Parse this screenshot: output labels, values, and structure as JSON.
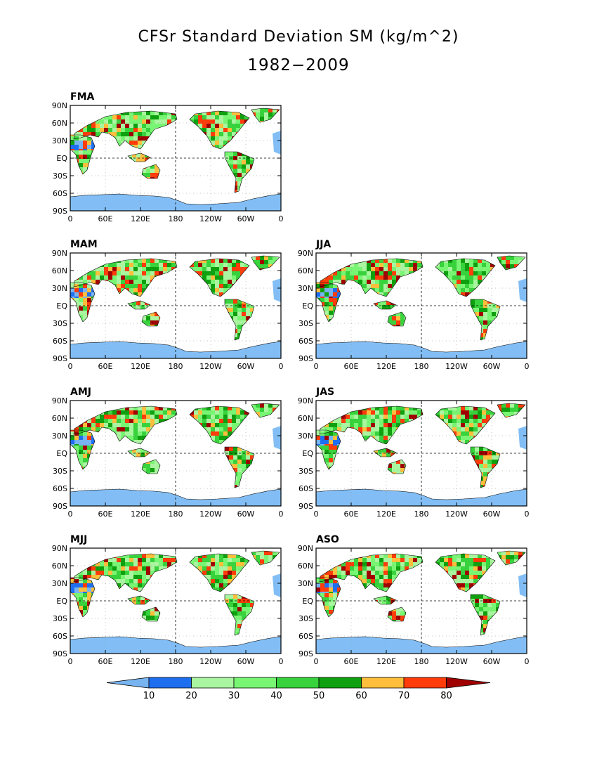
{
  "title": "CFSr Standard Deviation SM (kg/m^2)",
  "subtitle": "1982−2009",
  "lat_ticks": [
    "90N",
    "60N",
    "30N",
    "EQ",
    "30S",
    "60S",
    "90S"
  ],
  "lon_ticks": [
    "0",
    "60E",
    "120E",
    "180",
    "120W",
    "60W",
    "0"
  ],
  "panels": [
    {
      "id": "fma",
      "label": "FMA"
    },
    {
      "id": "mam",
      "label": "MAM"
    },
    {
      "id": "jja",
      "label": "JJA"
    },
    {
      "id": "amj",
      "label": "AMJ"
    },
    {
      "id": "jas",
      "label": "JAS"
    },
    {
      "id": "mjj",
      "label": "MJJ"
    },
    {
      "id": "aso",
      "label": "ASO"
    }
  ],
  "colorbar": {
    "labels": [
      "10",
      "20",
      "30",
      "40",
      "50",
      "60",
      "70",
      "80"
    ],
    "colors": [
      "#78b4f0",
      "#1e6ef0",
      "#aaf5a0",
      "#78f573",
      "#37d23c",
      "#0fa00f",
      "#ffbe3c",
      "#ff3c0a",
      "#a00000"
    ]
  },
  "colors": {
    "ocean_band": "#82bef5",
    "frame": "#000000"
  }
}
